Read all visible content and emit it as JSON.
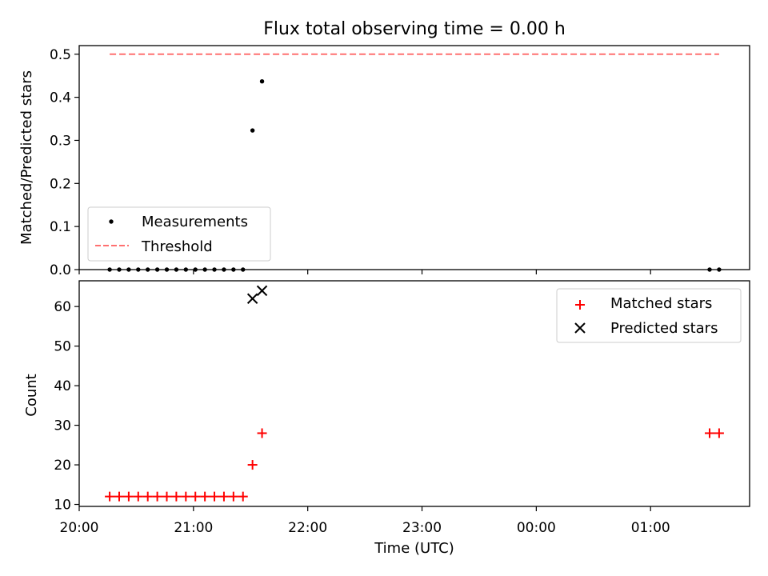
{
  "chart_data": [
    {
      "type": "scatter",
      "title": "Flux total observing time = 0.00 h",
      "xlabel": "",
      "ylabel": "Matched/Predicted stars",
      "xlim": [
        "20:00",
        "01:52"
      ],
      "ylim": [
        0,
        0.52
      ],
      "yticks": [
        "0.0",
        "0.1",
        "0.2",
        "0.3",
        "0.4",
        "0.5"
      ],
      "legend_position": "lower-left",
      "series": [
        {
          "name": "Measurements",
          "marker": "dot",
          "color": "#000000",
          "points": [
            [
              "20:16",
              0
            ],
            [
              "20:21",
              0
            ],
            [
              "20:26",
              0
            ],
            [
              "20:31",
              0
            ],
            [
              "20:36",
              0
            ],
            [
              "20:41",
              0
            ],
            [
              "20:46",
              0
            ],
            [
              "20:51",
              0
            ],
            [
              "20:56",
              0
            ],
            [
              "21:01",
              0
            ],
            [
              "21:06",
              0
            ],
            [
              "21:11",
              0
            ],
            [
              "21:16",
              0
            ],
            [
              "21:21",
              0
            ],
            [
              "21:26",
              0
            ],
            [
              "21:31",
              0.323
            ],
            [
              "21:36",
              0.437
            ],
            [
              "01:31",
              0
            ],
            [
              "01:36",
              0
            ]
          ]
        },
        {
          "name": "Threshold",
          "marker": "dashed-line",
          "color": "#ff7070",
          "points": [
            [
              "20:16",
              0.5
            ],
            [
              "01:36",
              0.5
            ]
          ]
        }
      ]
    },
    {
      "type": "scatter",
      "title": "",
      "xlabel": "Time (UTC)",
      "ylabel": "Count",
      "xlim": [
        "20:00",
        "01:52"
      ],
      "ylim": [
        9.5,
        66.5
      ],
      "xticks": [
        "20:00",
        "21:00",
        "22:00",
        "23:00",
        "00:00",
        "01:00"
      ],
      "yticks": [
        "10",
        "20",
        "30",
        "40",
        "50",
        "60"
      ],
      "legend_position": "upper-right",
      "series": [
        {
          "name": "Matched stars",
          "marker": "plus",
          "color": "#ff0000",
          "points": [
            [
              "20:16",
              12
            ],
            [
              "20:21",
              12
            ],
            [
              "20:26",
              12
            ],
            [
              "20:31",
              12
            ],
            [
              "20:36",
              12
            ],
            [
              "20:41",
              12
            ],
            [
              "20:46",
              12
            ],
            [
              "20:51",
              12
            ],
            [
              "20:56",
              12
            ],
            [
              "21:01",
              12
            ],
            [
              "21:06",
              12
            ],
            [
              "21:11",
              12
            ],
            [
              "21:16",
              12
            ],
            [
              "21:21",
              12
            ],
            [
              "21:26",
              12
            ],
            [
              "21:31",
              20
            ],
            [
              "21:36",
              28
            ],
            [
              "01:31",
              28
            ],
            [
              "01:36",
              28
            ]
          ]
        },
        {
          "name": "Predicted stars",
          "marker": "x",
          "color": "#000000",
          "points": [
            [
              "21:31",
              62
            ],
            [
              "21:36",
              64
            ]
          ]
        }
      ]
    }
  ]
}
